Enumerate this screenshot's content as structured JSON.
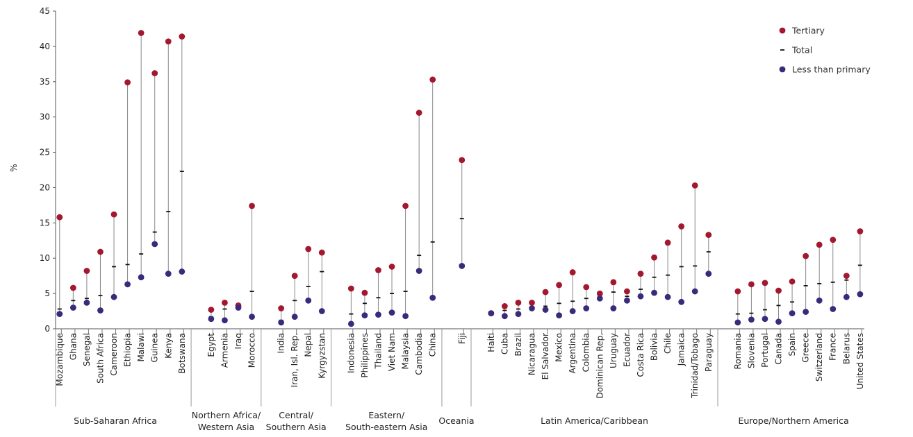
{
  "chart_data": {
    "type": "dot",
    "ylabel": "%",
    "ylim": [
      0,
      45
    ],
    "yticks": [
      0,
      5,
      10,
      15,
      20,
      25,
      30,
      35,
      40,
      45
    ],
    "grid": false,
    "legend_position": "top-right",
    "colors": {
      "tertiary": "#a3172f",
      "total": "#111111",
      "less_than_primary": "#3b2a7a",
      "range_line": "#888888"
    },
    "legend": [
      {
        "key": "tertiary",
        "label": "Tertiary"
      },
      {
        "key": "total",
        "label": "Total"
      },
      {
        "key": "less_than_primary",
        "label": "Less than primary"
      }
    ],
    "groups": [
      {
        "name": "Sub-Saharan Africa",
        "label_lines": [
          "Sub-Saharan Africa"
        ],
        "countries": [
          {
            "name": "Mozambique",
            "tertiary": 15.8,
            "total": 2.8,
            "less_than_primary": 2.1
          },
          {
            "name": "Ghana",
            "tertiary": 5.8,
            "total": 4.0,
            "less_than_primary": 3.0
          },
          {
            "name": "Senegal",
            "tertiary": 8.2,
            "total": 4.3,
            "less_than_primary": 3.7
          },
          {
            "name": "South Africa",
            "tertiary": 10.9,
            "total": 4.7,
            "less_than_primary": 2.6
          },
          {
            "name": "Cameroon",
            "tertiary": 16.2,
            "total": 8.8,
            "less_than_primary": 4.5
          },
          {
            "name": "Ethiopia",
            "tertiary": 34.9,
            "total": 9.1,
            "less_than_primary": 6.3
          },
          {
            "name": "Malawi",
            "tertiary": 41.9,
            "total": 10.6,
            "less_than_primary": 7.3
          },
          {
            "name": "Guinea",
            "tertiary": 36.2,
            "total": 13.7,
            "less_than_primary": 12.0
          },
          {
            "name": "Kenya",
            "tertiary": 40.7,
            "total": 16.6,
            "less_than_primary": 7.8
          },
          {
            "name": "Botswana",
            "tertiary": 41.4,
            "total": 22.3,
            "less_than_primary": 8.1
          }
        ]
      },
      {
        "name": "Northern Africa/Western Asia",
        "label_lines": [
          "Northern Africa/",
          "Western Asia"
        ],
        "countries": [
          {
            "name": "Egypt",
            "tertiary": 2.7,
            "total": 1.7,
            "less_than_primary": 1.4
          },
          {
            "name": "Armenia",
            "tertiary": 3.7,
            "total": 2.8,
            "less_than_primary": 1.2
          },
          {
            "name": "Iraq",
            "tertiary": 3.3,
            "total": 3.1,
            "less_than_primary": 3.0
          },
          {
            "name": "Morocco",
            "tertiary": 17.4,
            "total": 5.3,
            "less_than_primary": 1.7
          }
        ]
      },
      {
        "name": "Central/Southern Asia",
        "label_lines": [
          "Central/",
          "Southern Asia"
        ],
        "countries": [
          {
            "name": "India",
            "tertiary": 2.9,
            "total": 1.2,
            "less_than_primary": 0.9
          },
          {
            "name": "Iran, Isl. Rep.",
            "tertiary": 7.5,
            "total": 4.0,
            "less_than_primary": 1.7
          },
          {
            "name": "Nepal",
            "tertiary": 11.3,
            "total": 6.0,
            "less_than_primary": 4.0
          },
          {
            "name": "Kyrgyzstan",
            "tertiary": 10.8,
            "total": 8.1,
            "less_than_primary": 2.5
          }
        ]
      },
      {
        "name": "Eastern/South-eastern Asia",
        "label_lines": [
          "Eastern/",
          "South-eastern Asia"
        ],
        "countries": [
          {
            "name": "Indonesia",
            "tertiary": 5.7,
            "total": 2.1,
            "less_than_primary": 0.7
          },
          {
            "name": "Philippines",
            "tertiary": 5.1,
            "total": 3.6,
            "less_than_primary": 1.9
          },
          {
            "name": "Thailand",
            "tertiary": 8.3,
            "total": 4.4,
            "less_than_primary": 2.0
          },
          {
            "name": "Viet Nam",
            "tertiary": 8.8,
            "total": 5.0,
            "less_than_primary": 2.3
          },
          {
            "name": "Malaysia",
            "tertiary": 17.4,
            "total": 5.3,
            "less_than_primary": 1.8
          },
          {
            "name": "Cambodia",
            "tertiary": 30.6,
            "total": 10.4,
            "less_than_primary": 8.2
          },
          {
            "name": "China",
            "tertiary": 35.3,
            "total": 12.3,
            "less_than_primary": 4.4
          }
        ]
      },
      {
        "name": "Oceania",
        "label_lines": [
          "Oceania"
        ],
        "countries": [
          {
            "name": "Fiji",
            "tertiary": 23.9,
            "total": 15.6,
            "less_than_primary": 8.9
          }
        ]
      },
      {
        "name": "Latin America/Caribbean",
        "label_lines": [
          "Latin America/Caribbean"
        ],
        "countries": [
          {
            "name": "Haiti",
            "tertiary": 2.2,
            "total": 2.2,
            "less_than_primary": 2.2
          },
          {
            "name": "Cuba",
            "tertiary": 3.2,
            "total": 2.6,
            "less_than_primary": 1.8
          },
          {
            "name": "Brazil",
            "tertiary": 3.7,
            "total": 2.8,
            "less_than_primary": 2.1
          },
          {
            "name": "Nicaragua",
            "tertiary": 3.7,
            "total": 3.0,
            "less_than_primary": 2.9
          },
          {
            "name": "El Salvador",
            "tertiary": 5.2,
            "total": 3.2,
            "less_than_primary": 2.7
          },
          {
            "name": "Mexico",
            "tertiary": 6.2,
            "total": 3.6,
            "less_than_primary": 1.9
          },
          {
            "name": "Argentina",
            "tertiary": 8.0,
            "total": 3.9,
            "less_than_primary": 2.5
          },
          {
            "name": "Colombia",
            "tertiary": 5.9,
            "total": 4.3,
            "less_than_primary": 2.9
          },
          {
            "name": "Dominican Rep.",
            "tertiary": 5.0,
            "total": 4.6,
            "less_than_primary": 4.3
          },
          {
            "name": "Uruguay",
            "tertiary": 6.6,
            "total": 5.2,
            "less_than_primary": 2.9
          },
          {
            "name": "Ecuador",
            "tertiary": 5.3,
            "total": 4.6,
            "less_than_primary": 4.0
          },
          {
            "name": "Costa Rica",
            "tertiary": 7.8,
            "total": 5.6,
            "less_than_primary": 4.6
          },
          {
            "name": "Bolivia",
            "tertiary": 10.1,
            "total": 7.3,
            "less_than_primary": 5.1
          },
          {
            "name": "Chile",
            "tertiary": 12.2,
            "total": 7.6,
            "less_than_primary": 4.5
          },
          {
            "name": "Jamaica",
            "tertiary": 14.5,
            "total": 8.8,
            "less_than_primary": 3.8
          },
          {
            "name": "Trinidad/Tobago",
            "tertiary": 20.3,
            "total": 8.9,
            "less_than_primary": 5.3
          },
          {
            "name": "Paraguay",
            "tertiary": 13.3,
            "total": 10.9,
            "less_than_primary": 7.8
          }
        ]
      },
      {
        "name": "Europe/Northern America",
        "label_lines": [
          "Europe/Northern America"
        ],
        "countries": [
          {
            "name": "Romania",
            "tertiary": 5.3,
            "total": 2.1,
            "less_than_primary": 0.9
          },
          {
            "name": "Slovenia",
            "tertiary": 6.3,
            "total": 2.2,
            "less_than_primary": 1.3
          },
          {
            "name": "Portugal",
            "tertiary": 6.5,
            "total": 2.7,
            "less_than_primary": 1.4
          },
          {
            "name": "Canada",
            "tertiary": 5.4,
            "total": 3.3,
            "less_than_primary": 1.0
          },
          {
            "name": "Spain",
            "tertiary": 6.7,
            "total": 3.8,
            "less_than_primary": 2.2
          },
          {
            "name": "Greece",
            "tertiary": 10.3,
            "total": 6.1,
            "less_than_primary": 2.4
          },
          {
            "name": "Switzerland",
            "tertiary": 11.9,
            "total": 6.4,
            "less_than_primary": 4.0
          },
          {
            "name": "France",
            "tertiary": 12.6,
            "total": 6.6,
            "less_than_primary": 2.8
          },
          {
            "name": "Belarus",
            "tertiary": 7.5,
            "total": 6.9,
            "less_than_primary": 4.5
          },
          {
            "name": "United States",
            "tertiary": 13.8,
            "total": 9.0,
            "less_than_primary": 4.9
          }
        ]
      }
    ]
  }
}
